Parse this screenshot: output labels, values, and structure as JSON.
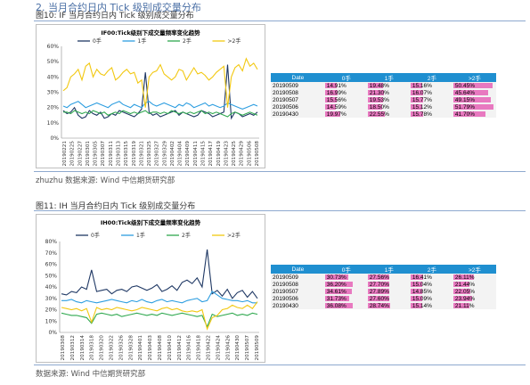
{
  "header": {
    "truncated_title": "2. 当月合约日内 Tick 级别成交量分布"
  },
  "fig10": {
    "caption": "图10:  IF 当月合约日内 Tick  级别成交量分布",
    "source": "zhuzhu 数据来源:  Wind    中信期货研究部"
  },
  "fig11": {
    "caption": "图11:  IH 当月合约日内 Tick  级别成交量分布",
    "source": "数据来源:  Wind    中信期货研究部"
  },
  "colors": {
    "s0": "#1f3864",
    "s1": "#2e9ee0",
    "s2": "#2fa84f",
    "s3": "#f2c811",
    "table_header": "#1f8fd0",
    "bar": "#e879c0"
  },
  "chart_data": [
    {
      "type": "line",
      "title": "IF00:Tick级别下成交量频率变化趋势",
      "yticks": [
        "0%",
        "10%",
        "20%",
        "30%",
        "40%",
        "50%",
        "60%"
      ],
      "ylim": [
        0,
        60
      ],
      "x_tick_labels": [
        "20190221",
        "20190225",
        "20190227",
        "20190301",
        "20190305",
        "20190307",
        "20190311",
        "20190313",
        "20190315",
        "20190319",
        "20190321",
        "20190325",
        "20190327",
        "20190329",
        "20190402",
        "20190404",
        "20190409",
        "20190411",
        "20190415",
        "20190417",
        "20190419",
        "20190423",
        "20190425",
        "20190429",
        "20190506",
        "20190508"
      ],
      "legend": [
        "0手",
        "1手",
        "2手",
        ">2手"
      ],
      "series": [
        {
          "name": "0手",
          "values": [
            18,
            16,
            17,
            20,
            15,
            13,
            14,
            18,
            16,
            15,
            17,
            13,
            14,
            16,
            15,
            18,
            17,
            16,
            15,
            14,
            16,
            19,
            43,
            17,
            15,
            16,
            14,
            15,
            16,
            17,
            18,
            15,
            17,
            16,
            15,
            14,
            15,
            18,
            17,
            16,
            14,
            15,
            16,
            17,
            48,
            13,
            17,
            16,
            14,
            15,
            16,
            15,
            17
          ]
        },
        {
          "name": "1手",
          "values": [
            21,
            20,
            22,
            23,
            24,
            22,
            20,
            21,
            22,
            23,
            22,
            21,
            20,
            22,
            23,
            24,
            22,
            21,
            20,
            22,
            21,
            20,
            23,
            24,
            22,
            21,
            22,
            23,
            22,
            21,
            20,
            22,
            21,
            23,
            22,
            20,
            21,
            22,
            23,
            21,
            22,
            21,
            20,
            21,
            23,
            22,
            21,
            20,
            19,
            20,
            21,
            22,
            21
          ]
        },
        {
          "name": "2手",
          "values": [
            17,
            17,
            16,
            18,
            17,
            16,
            17,
            16,
            18,
            17,
            16,
            17,
            15,
            16,
            17,
            16,
            18,
            17,
            16,
            17,
            16,
            17,
            18,
            16,
            17,
            17,
            16,
            17,
            16,
            18,
            17,
            16,
            17,
            16,
            17,
            16,
            17,
            18,
            16,
            17,
            16,
            17,
            16,
            15,
            14,
            16,
            17,
            16,
            15,
            16,
            17,
            16,
            15
          ]
        },
        {
          "name": ">2手",
          "values": [
            31,
            33,
            40,
            42,
            45,
            38,
            47,
            49,
            40,
            45,
            42,
            41,
            44,
            46,
            38,
            40,
            43,
            45,
            42,
            43,
            36,
            38,
            20,
            40,
            43,
            44,
            48,
            42,
            40,
            38,
            40,
            45,
            44,
            38,
            42,
            46,
            42,
            43,
            41,
            38,
            40,
            43,
            45,
            47,
            20,
            40,
            46,
            48,
            44,
            52,
            47,
            49,
            45
          ]
        }
      ]
    },
    {
      "type": "line",
      "title": "IH00:Tick级别下成交量频率变化趋势",
      "yticks": [
        "0%",
        "10%",
        "20%",
        "30%",
        "40%",
        "50%",
        "60%",
        "70%",
        "80%"
      ],
      "ylim": [
        0,
        80
      ],
      "x_tick_labels": [
        "20190308",
        "20190312",
        "20190314",
        "20190318",
        "20190320",
        "20190322",
        "20190326",
        "20190328",
        "20190401",
        "20190403",
        "20190408",
        "20190410",
        "20190412",
        "20190416",
        "20190418",
        "20190422",
        "20190424",
        "20190426",
        "20190430",
        "20190507",
        "20190509"
      ],
      "legend": [
        "0手",
        "1手",
        "2手",
        ">2手"
      ],
      "series": [
        {
          "name": "0手",
          "values": [
            34,
            33,
            36,
            35,
            40,
            38,
            55,
            36,
            37,
            38,
            34,
            37,
            38,
            36,
            40,
            41,
            39,
            37,
            39,
            42,
            36,
            38,
            41,
            37,
            44,
            46,
            43,
            48,
            40,
            73,
            34,
            37,
            32,
            38,
            30,
            35,
            37,
            31,
            36,
            30
          ]
        },
        {
          "name": "1手",
          "values": [
            28,
            28,
            29,
            27,
            26,
            28,
            27,
            26,
            27,
            28,
            29,
            28,
            27,
            26,
            28,
            27,
            29,
            27,
            26,
            28,
            29,
            27,
            28,
            27,
            26,
            28,
            29,
            30,
            27,
            28,
            36,
            33,
            30,
            29,
            28,
            28,
            27,
            28,
            26,
            26
          ]
        },
        {
          "name": "2手",
          "values": [
            17,
            16,
            15,
            15,
            14,
            13,
            8,
            16,
            17,
            16,
            15,
            16,
            14,
            15,
            16,
            17,
            16,
            15,
            16,
            15,
            17,
            16,
            15,
            16,
            17,
            16,
            15,
            14,
            15,
            5,
            16,
            14,
            15,
            16,
            17,
            15,
            16,
            15,
            17,
            16
          ]
        },
        {
          "name": ">2手",
          "values": [
            22,
            21,
            20,
            21,
            19,
            21,
            9,
            22,
            20,
            21,
            20,
            22,
            21,
            20,
            19,
            20,
            22,
            21,
            20,
            19,
            21,
            22,
            20,
            21,
            19,
            18,
            19,
            18,
            20,
            3,
            13,
            15,
            20,
            21,
            24,
            22,
            21,
            24,
            21,
            27
          ]
        }
      ]
    }
  ],
  "tables": {
    "if": {
      "headers": [
        "Date",
        "0手",
        "1手",
        "2手",
        ">2手"
      ],
      "rows": [
        [
          "20190509",
          "14.91%",
          "19.48%",
          "15.16%",
          "50.45%"
        ],
        [
          "20190508",
          "16.99%",
          "21.30%",
          "16.07%",
          "45.64%"
        ],
        [
          "20190507",
          "15.56%",
          "19.53%",
          "15.77%",
          "49.15%"
        ],
        [
          "20190506",
          "14.59%",
          "18.50%",
          "15.12%",
          "51.79%"
        ],
        [
          "20190430",
          "19.97%",
          "22.55%",
          "15.78%",
          "41.70%"
        ]
      ]
    },
    "ih": {
      "headers": [
        "Date",
        "0手",
        "1手",
        "2手",
        ">2手"
      ],
      "rows": [
        [
          "20190509",
          "30.73%",
          "27.56%",
          "16.41%",
          "26.11%"
        ],
        [
          "20190508",
          "36.20%",
          "27.70%",
          "15.04%",
          "21.44%"
        ],
        [
          "20190507",
          "34.61%",
          "27.89%",
          "14.85%",
          "22.05%"
        ],
        [
          "20190506",
          "31.73%",
          "27.60%",
          "15.09%",
          "23.94%"
        ],
        [
          "20190430",
          "36.08%",
          "28.74%",
          "15.14%",
          "21.11%"
        ]
      ]
    }
  }
}
